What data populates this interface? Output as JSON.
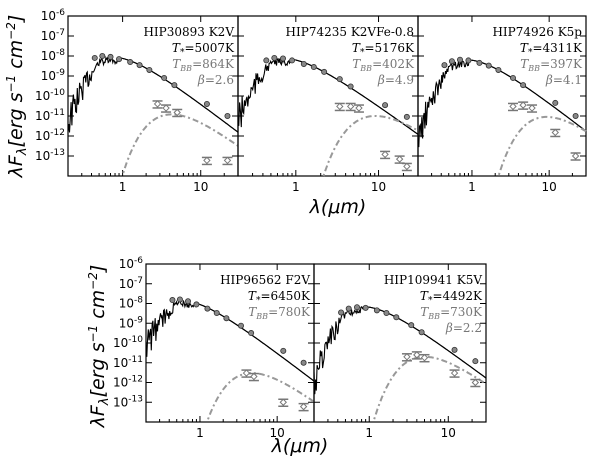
{
  "ylabel": "λF_λ[erg s^-1 cm^-2]",
  "xlabel": "λ(μm)",
  "y_ticks": [
    "10^-6",
    "10^-7",
    "10^-8",
    "10^-9",
    "10^-10",
    "10^-11",
    "10^-12",
    "10^-13"
  ],
  "x_ticks": [
    "1",
    "10"
  ],
  "chart_data": [
    {
      "type": "line",
      "log_x": true,
      "log_y": true,
      "xlim": [
        0.2,
        30
      ],
      "ylim": [
        1e-14,
        1e-06
      ],
      "star": "HIP30893 K2V",
      "t_star": "=5007K",
      "t_bb": "=864K",
      "beta": "=2.6",
      "photometry": [
        [
          0.44,
          8e-09
        ],
        [
          0.55,
          1e-08
        ],
        [
          0.7,
          9e-09
        ],
        [
          0.9,
          7e-09
        ],
        [
          1.25,
          5e-09
        ],
        [
          1.65,
          3.5e-09
        ],
        [
          2.2,
          2e-09
        ],
        [
          3.4,
          8e-10
        ],
        [
          4.6,
          3.5e-10
        ],
        [
          12,
          4e-11
        ],
        [
          22,
          1e-11
        ]
      ],
      "excess": [
        [
          2.8,
          4e-11
        ],
        [
          3.6,
          2.5e-11
        ],
        [
          5,
          1.5e-11
        ],
        [
          12,
          6e-14
        ],
        [
          22,
          6e-14
        ]
      ],
      "bb_peak": [
        3.5,
        1.2e-11
      ]
    },
    {
      "type": "line",
      "log_x": true,
      "log_y": true,
      "xlim": [
        0.2,
        30
      ],
      "ylim": [
        1e-14,
        1e-06
      ],
      "star": "HIP74235",
      "spt": "K2VFe-0.8",
      "t_star": "=5176K",
      "t_bb": "=402K",
      "beta": "=4.9",
      "photometry": [
        [
          0.44,
          6e-09
        ],
        [
          0.55,
          8e-09
        ],
        [
          0.7,
          7.5e-09
        ],
        [
          0.9,
          6e-09
        ],
        [
          1.25,
          4e-09
        ],
        [
          1.65,
          2.8e-09
        ],
        [
          2.2,
          1.6e-09
        ],
        [
          3.4,
          7e-10
        ],
        [
          4.6,
          3e-10
        ],
        [
          12,
          3.5e-11
        ],
        [
          22,
          9e-12
        ]
      ],
      "excess": [
        [
          3.4,
          3e-11
        ],
        [
          4.6,
          3e-11
        ],
        [
          5.8,
          2.5e-11
        ],
        [
          12,
          1.2e-13
        ],
        [
          18,
          7e-14
        ],
        [
          22,
          3e-14
        ]
      ],
      "bb_peak": [
        7,
        1e-11
      ]
    },
    {
      "type": "line",
      "log_x": true,
      "log_y": true,
      "xlim": [
        0.2,
        30
      ],
      "ylim": [
        1e-14,
        1e-06
      ],
      "star": "HIP74926 K5p",
      "t_star": "=4311K",
      "t_bb": "=397K",
      "beta": "=4.1",
      "photometry": [
        [
          0.44,
          3.5e-09
        ],
        [
          0.55,
          5.5e-09
        ],
        [
          0.7,
          6.5e-09
        ],
        [
          0.9,
          6e-09
        ],
        [
          1.25,
          4.5e-09
        ],
        [
          1.65,
          3.3e-09
        ],
        [
          2.2,
          2e-09
        ],
        [
          3.4,
          8e-10
        ],
        [
          4.6,
          3.5e-10
        ],
        [
          12,
          4.5e-11
        ],
        [
          22,
          1e-11
        ]
      ],
      "excess": [
        [
          3.4,
          3e-11
        ],
        [
          4.6,
          3.5e-11
        ],
        [
          6,
          2.5e-11
        ],
        [
          12,
          1.5e-12
        ],
        [
          22,
          1e-13
        ]
      ],
      "bb_peak": [
        7,
        9e-12
      ]
    },
    {
      "type": "line",
      "log_x": true,
      "log_y": true,
      "xlim": [
        0.2,
        30
      ],
      "ylim": [
        1e-14,
        1e-06
      ],
      "star": "HIP96562 F2V",
      "t_star": "=6450K",
      "t_bb": "=780K",
      "photometry": [
        [
          0.44,
          1.5e-08
        ],
        [
          0.55,
          1.6e-08
        ],
        [
          0.7,
          1.3e-08
        ],
        [
          0.9,
          9e-09
        ],
        [
          1.25,
          5.5e-09
        ],
        [
          1.65,
          3.3e-09
        ],
        [
          2.2,
          1.8e-09
        ],
        [
          3.4,
          7.5e-10
        ],
        [
          4.6,
          3.2e-10
        ],
        [
          12,
          4e-11
        ],
        [
          22,
          1e-11
        ]
      ],
      "excess": [
        [
          4,
          3e-12
        ],
        [
          5,
          2e-12
        ],
        [
          12,
          1e-13
        ],
        [
          22,
          6e-14
        ]
      ],
      "bb_peak": [
        4,
        3e-12
      ]
    },
    {
      "type": "line",
      "log_x": true,
      "log_y": true,
      "xlim": [
        0.2,
        30
      ],
      "ylim": [
        1e-14,
        1e-06
      ],
      "star": "HIP109941 K5V",
      "t_star": "=4492K",
      "t_bb": "=730K",
      "beta": "=2.2",
      "photometry": [
        [
          0.44,
          3.5e-09
        ],
        [
          0.55,
          5.5e-09
        ],
        [
          0.7,
          6.5e-09
        ],
        [
          0.9,
          6e-09
        ],
        [
          1.25,
          4.5e-09
        ],
        [
          1.65,
          3.3e-09
        ],
        [
          2.2,
          2e-09
        ],
        [
          3.4,
          8e-10
        ],
        [
          4.6,
          3.5e-10
        ],
        [
          12,
          4.5e-11
        ],
        [
          22,
          1.2e-11
        ]
      ],
      "excess": [
        [
          3,
          2e-11
        ],
        [
          4,
          2.5e-11
        ],
        [
          5,
          1.8e-11
        ],
        [
          12,
          3e-12
        ],
        [
          22,
          1e-12
        ]
      ],
      "bb_peak": [
        4,
        2e-11
      ]
    }
  ]
}
